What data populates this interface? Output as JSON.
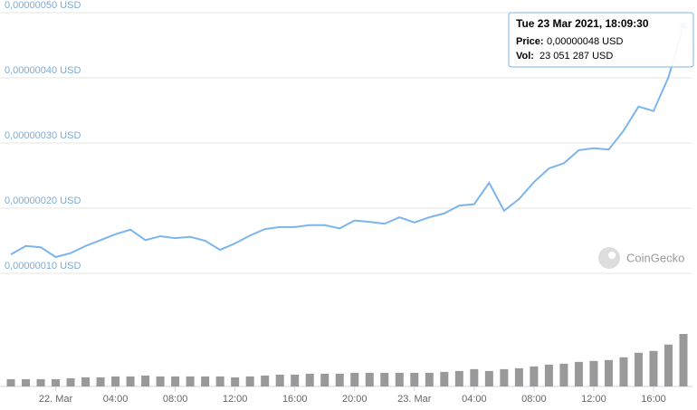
{
  "chart_data": [
    {
      "type": "line",
      "color": "#7cb5ec",
      "values": [
        1.29e-07,
        1.42e-07,
        1.4e-07,
        1.25e-07,
        1.31e-07,
        1.42e-07,
        1.51e-07,
        1.6e-07,
        1.67e-07,
        1.51e-07,
        1.57e-07,
        1.54e-07,
        1.56e-07,
        1.5e-07,
        1.36e-07,
        1.46e-07,
        1.58e-07,
        1.68e-07,
        1.71e-07,
        1.71e-07,
        1.74e-07,
        1.74e-07,
        1.69e-07,
        1.81e-07,
        1.79e-07,
        1.76e-07,
        1.86e-07,
        1.78e-07,
        1.86e-07,
        1.92e-07,
        2.04e-07,
        2.06e-07,
        2.39e-07,
        1.96e-07,
        2.14e-07,
        2.4e-07,
        2.61e-07,
        2.69e-07,
        2.89e-07,
        2.92e-07,
        2.9e-07,
        3.19e-07,
        3.56e-07,
        3.49e-07,
        4.01e-07,
        4.8e-07
      ],
      "ylim": [
        1e-07,
        5e-07
      ],
      "yticks": [
        {
          "value": 1e-07,
          "label": "0,00000010 USD"
        },
        {
          "value": 2e-07,
          "label": "0,00000020 USD"
        },
        {
          "value": 3e-07,
          "label": "0,00000030 USD"
        },
        {
          "value": 4e-07,
          "label": "0,00000040 USD"
        },
        {
          "value": 5e-07,
          "label": "0,00000050 USD"
        }
      ],
      "grid": true,
      "tooltip": {
        "title": "Tue 23 Mar 2021, 18:09:30",
        "price_label": "Price:",
        "price": "0,00000048 USD",
        "vol_label": "Vol:",
        "vol": "23 051 287 USD"
      },
      "watermark": "CoinGecko"
    },
    {
      "type": "bar",
      "color": "#999999",
      "categories": [
        null,
        null,
        null,
        "22. Mar",
        null,
        null,
        null,
        "04:00",
        null,
        null,
        null,
        "08:00",
        null,
        null,
        null,
        "12:00",
        null,
        null,
        null,
        "16:00",
        null,
        null,
        null,
        "20:00",
        null,
        null,
        null,
        "23. Mar",
        null,
        null,
        null,
        "04:00",
        null,
        null,
        null,
        "08:00",
        null,
        null,
        null,
        "12:00",
        null,
        null,
        null,
        "16:00",
        null,
        null
      ],
      "values": [
        3200000,
        3200000,
        3200000,
        3200000,
        3600000,
        4000000,
        4000000,
        4400000,
        4400000,
        4800000,
        4400000,
        4400000,
        4400000,
        4400000,
        4400000,
        4000000,
        4400000,
        4800000,
        5200000,
        5200000,
        5600000,
        5600000,
        5600000,
        6000000,
        6000000,
        6000000,
        6000000,
        6000000,
        6000000,
        6400000,
        6800000,
        7600000,
        6800000,
        7600000,
        8000000,
        8800000,
        9600000,
        10000000,
        10800000,
        11200000,
        11600000,
        12800000,
        14800000,
        15600000,
        18400000,
        23051287
      ]
    }
  ]
}
